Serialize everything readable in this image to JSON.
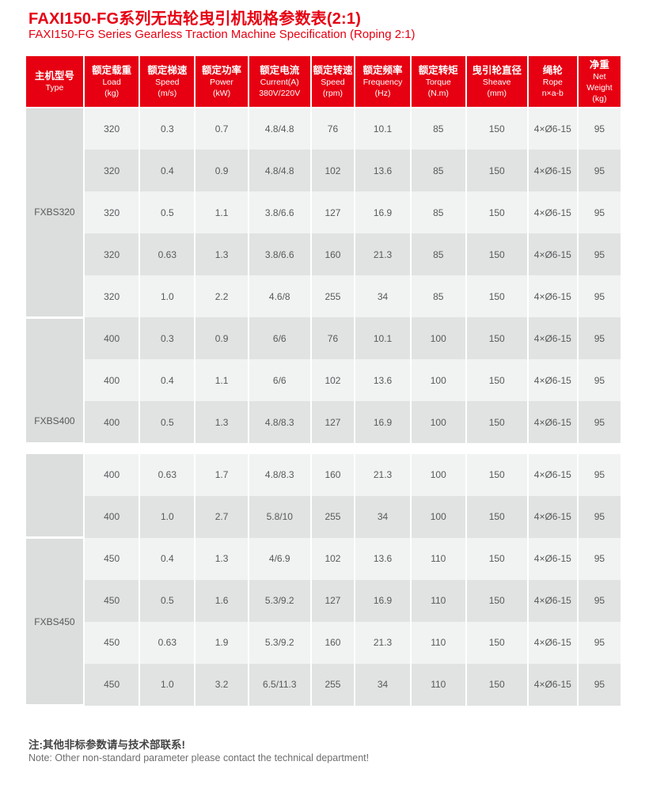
{
  "title": {
    "zh": "FAXI150-FG系列无齿轮曳引机规格参数表(2:1)",
    "en": "FAXI150-FG Series Gearless Traction Machine Specification (Roping 2:1)"
  },
  "colors": {
    "accent_red": "#e60012",
    "header_text": "#ffffff",
    "row_light": "#f1f2f2",
    "row_dark": "#e1e2e2",
    "type_column_bg": "#dcdddd",
    "cell_text": "#58595b"
  },
  "table": {
    "col_widths_pct": [
      9.7,
      9.4,
      9.3,
      9.0,
      10.5,
      7.4,
      9.4,
      9.3,
      10.4,
      8.4,
      7.2
    ],
    "columns": [
      {
        "zh": "主机型号",
        "en": "Type",
        "unit": ""
      },
      {
        "zh": "额定载重",
        "en": "Load",
        "unit": "(kg)"
      },
      {
        "zh": "额定梯速",
        "en": "Speed",
        "unit": "(m/s)"
      },
      {
        "zh": "额定功率",
        "en": "Power",
        "unit": "(kW)"
      },
      {
        "zh": "额定电流",
        "en": "Current(A)",
        "unit": "380V/220V"
      },
      {
        "zh": "额定转速",
        "en": "Speed",
        "unit": "(rpm)"
      },
      {
        "zh": "额定频率",
        "en": "Frequency",
        "unit": "(Hz)"
      },
      {
        "zh": "额定转矩",
        "en": "Torque",
        "unit": "(N.m)"
      },
      {
        "zh": "曳引轮直径",
        "en": "Sheave",
        "unit": "(mm)"
      },
      {
        "zh": "绳轮",
        "en": "Rope",
        "unit": "n×a-b"
      },
      {
        "zh": "净重",
        "en": "Net Weight",
        "unit": "(kg)"
      }
    ],
    "blocks": [
      {
        "has_header": true,
        "groups": [
          {
            "type": "FXBS320",
            "label_pos": "middle",
            "rows": [
              [
                "320",
                "0.3",
                "0.7",
                "4.8/4.8",
                "76",
                "10.1",
                "85",
                "150",
                "4×Ø6-15",
                "95"
              ],
              [
                "320",
                "0.4",
                "0.9",
                "4.8/4.8",
                "102",
                "13.6",
                "85",
                "150",
                "4×Ø6-15",
                "95"
              ],
              [
                "320",
                "0.5",
                "1.1",
                "3.8/6.6",
                "127",
                "16.9",
                "85",
                "150",
                "4×Ø6-15",
                "95"
              ],
              [
                "320",
                "0.63",
                "1.3",
                "3.8/6.6",
                "160",
                "21.3",
                "85",
                "150",
                "4×Ø6-15",
                "95"
              ],
              [
                "320",
                "1.0",
                "2.2",
                "4.6/8",
                "255",
                "34",
                "85",
                "150",
                "4×Ø6-15",
                "95"
              ]
            ]
          },
          {
            "type": "FXBS400",
            "label_pos": "bottom",
            "rows": [
              [
                "400",
                "0.3",
                "0.9",
                "6/6",
                "76",
                "10.1",
                "100",
                "150",
                "4×Ø6-15",
                "95"
              ],
              [
                "400",
                "0.4",
                "1.1",
                "6/6",
                "102",
                "13.6",
                "100",
                "150",
                "4×Ø6-15",
                "95"
              ],
              [
                "400",
                "0.5",
                "1.3",
                "4.8/8.3",
                "127",
                "16.9",
                "100",
                "150",
                "4×Ø6-15",
                "95"
              ]
            ]
          }
        ]
      },
      {
        "has_header": false,
        "groups": [
          {
            "type": "",
            "label_pos": "middle",
            "rows": [
              [
                "400",
                "0.63",
                "1.7",
                "4.8/8.3",
                "160",
                "21.3",
                "100",
                "150",
                "4×Ø6-15",
                "95"
              ],
              [
                "400",
                "1.0",
                "2.7",
                "5.8/10",
                "255",
                "34",
                "100",
                "150",
                "4×Ø6-15",
                "95"
              ]
            ]
          },
          {
            "type": "FXBS450",
            "label_pos": "middle",
            "rows": [
              [
                "450",
                "0.4",
                "1.3",
                "4/6.9",
                "102",
                "13.6",
                "110",
                "150",
                "4×Ø6-15",
                "95"
              ],
              [
                "450",
                "0.5",
                "1.6",
                "5.3/9.2",
                "127",
                "16.9",
                "110",
                "150",
                "4×Ø6-15",
                "95"
              ],
              [
                "450",
                "0.63",
                "1.9",
                "5.3/9.2",
                "160",
                "21.3",
                "110",
                "150",
                "4×Ø6-15",
                "95"
              ],
              [
                "450",
                "1.0",
                "3.2",
                "6.5/11.3",
                "255",
                "34",
                "110",
                "150",
                "4×Ø6-15",
                "95"
              ]
            ]
          }
        ]
      }
    ]
  },
  "notes": {
    "zh": "注:其他非标参数请与技术部联系!",
    "en": "Note: Other non-standard parameter please contact the technical department!"
  }
}
